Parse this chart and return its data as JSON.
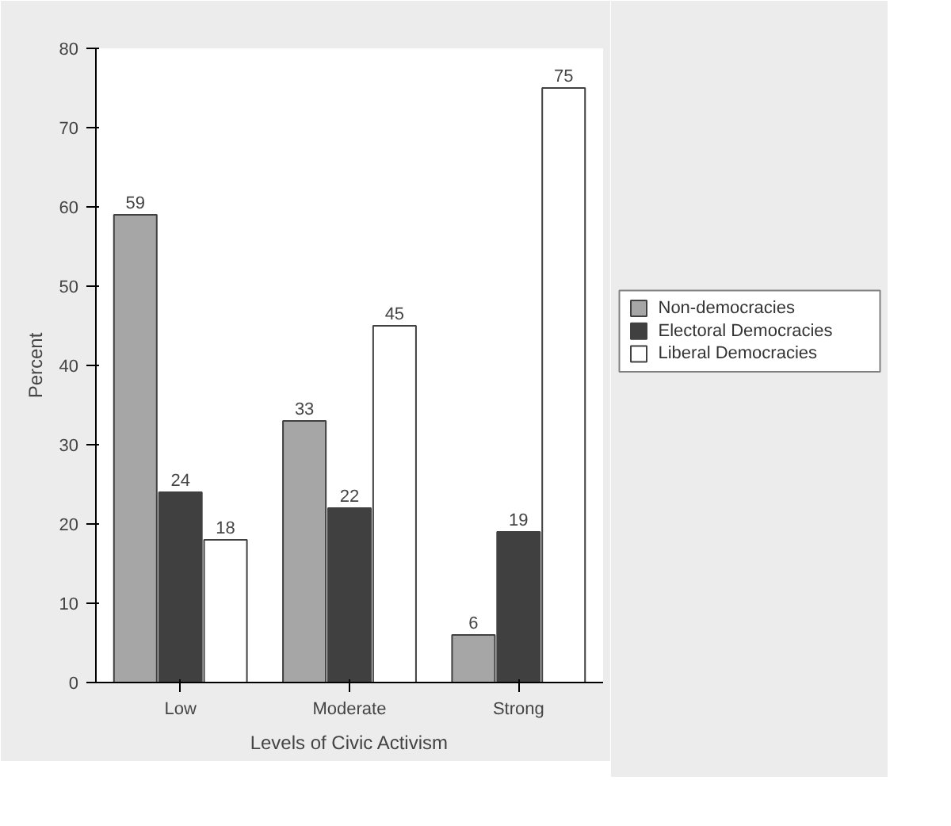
{
  "chart_data": {
    "type": "bar",
    "xlabel": "Levels of Civic Activism",
    "ylabel": "Percent",
    "categories": [
      "Low",
      "Moderate",
      "Strong"
    ],
    "series": [
      {
        "name": "Non-democracies",
        "color": "#a6a6a6",
        "values": [
          59,
          33,
          6
        ]
      },
      {
        "name": "Electoral Democracies",
        "color": "#404040",
        "values": [
          24,
          22,
          19
        ]
      },
      {
        "name": "Liberal Democracies",
        "color": "#ffffff",
        "values": [
          18,
          45,
          75
        ]
      }
    ],
    "ylim": [
      0,
      80
    ],
    "yticks": [
      0,
      10,
      20,
      30,
      40,
      50,
      60,
      70,
      80
    ],
    "grid": false,
    "legend": "right",
    "data_labels": true
  }
}
